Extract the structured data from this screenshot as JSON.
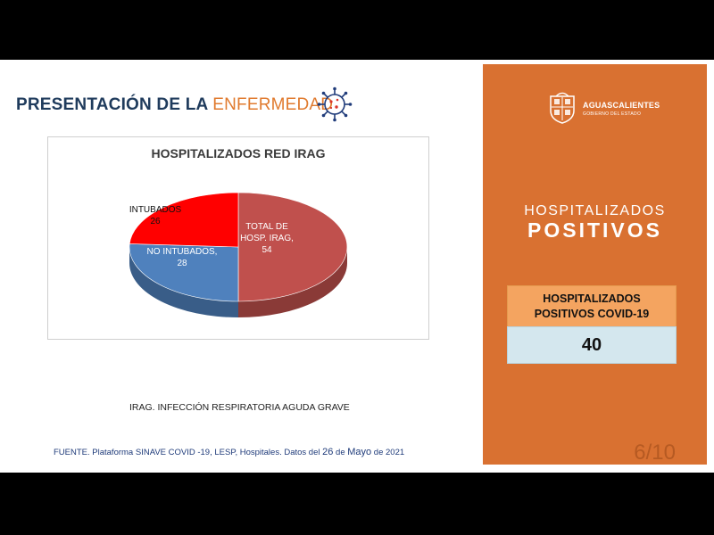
{
  "header": {
    "title_main": "PRESENTACIÓN DE LA",
    "title_accent": "ENFERMEDAD"
  },
  "chart_data": {
    "type": "pie",
    "title": "HOSPITALIZADOS RED IRAG",
    "slices": [
      {
        "label": "TOTAL DE HOSP. IRAG,",
        "label_lines": [
          "TOTAL DE",
          "HOSP. IRAG,"
        ],
        "value": 54,
        "color": "#c0504d"
      },
      {
        "label": "NO INTUBADOS,",
        "label_lines": [
          "NO INTUBADOS,"
        ],
        "value": 28,
        "color": "#4f81bd"
      },
      {
        "label": "INTUBADOS",
        "label_lines": [
          "INTUBADOS"
        ],
        "value": 26,
        "color": "#ff0000"
      }
    ]
  },
  "note": "IRAG. INFECCIÓN RESPIRATORIA AGUDA GRAVE",
  "source": {
    "prefix": "FUENTE. Plataforma SINAVE COVID -19, LESP, Hospitales. Datos del",
    "day": "26",
    "middle": "de",
    "month": "Mayo",
    "suffix": "de 2021"
  },
  "panel": {
    "brand_name": "AGUASCALIENTES",
    "brand_sub": "GOBIERNO DEL ESTADO",
    "heading_line1": "HOSPITALIZADOS",
    "heading_line2": "POSITIVOS",
    "stat_label_line1": "HOSPITALIZADOS",
    "stat_label_line2": "POSITIVOS COVID-19",
    "stat_value": "40",
    "page_number": "6/10",
    "color": "#d97131"
  }
}
